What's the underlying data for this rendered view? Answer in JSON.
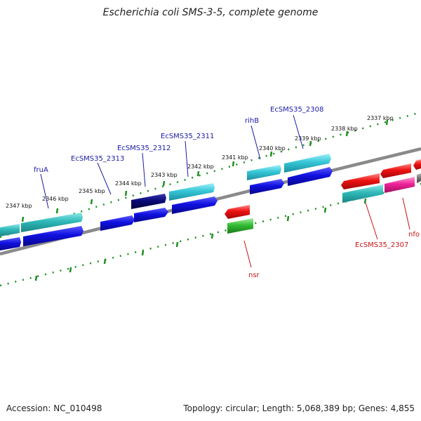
{
  "title": "Escherichia coli SMS-3-5, complete genome",
  "footer": {
    "accession": "Accession: NC_010498",
    "topology": "Topology: circular; Length: 5,068,389 bp; Genes: 4,855"
  },
  "colors": {
    "backbone": "#8a8a8a",
    "tick": "#1f8f1f",
    "label_forward": "#1a1aa6",
    "label_reverse": "#c41414",
    "cyan": "#35c6d6",
    "teal": "#2fb8b8",
    "blue": "#1010e0",
    "navy": "#0a0a78",
    "red": "#ee1111",
    "green": "#33bb33",
    "magenta": "#ee2299",
    "gray": "#777777"
  },
  "kbp_labels": [
    "2337 kbp",
    "2338 kbp",
    "2339 kbp",
    "2340 kbp",
    "2341 kbp",
    "2342 kbp",
    "2343 kbp",
    "2344 kbp",
    "2345 kbp",
    "2346 kbp",
    "2347 kbp"
  ],
  "gene_labels": [
    {
      "text": "EcSMS35_2308",
      "strand": "forward"
    },
    {
      "text": "rihB",
      "strand": "forward"
    },
    {
      "text": "EcSMS35_2311",
      "strand": "forward"
    },
    {
      "text": "EcSMS35_2312",
      "strand": "forward"
    },
    {
      "text": "EcSMS35_2313",
      "strand": "forward"
    },
    {
      "text": "fruA",
      "strand": "forward"
    },
    {
      "text": "EcSMS35_2307",
      "strand": "reverse"
    },
    {
      "text": "nfo",
      "strand": "reverse"
    },
    {
      "text": "nsr",
      "strand": "reverse"
    }
  ]
}
